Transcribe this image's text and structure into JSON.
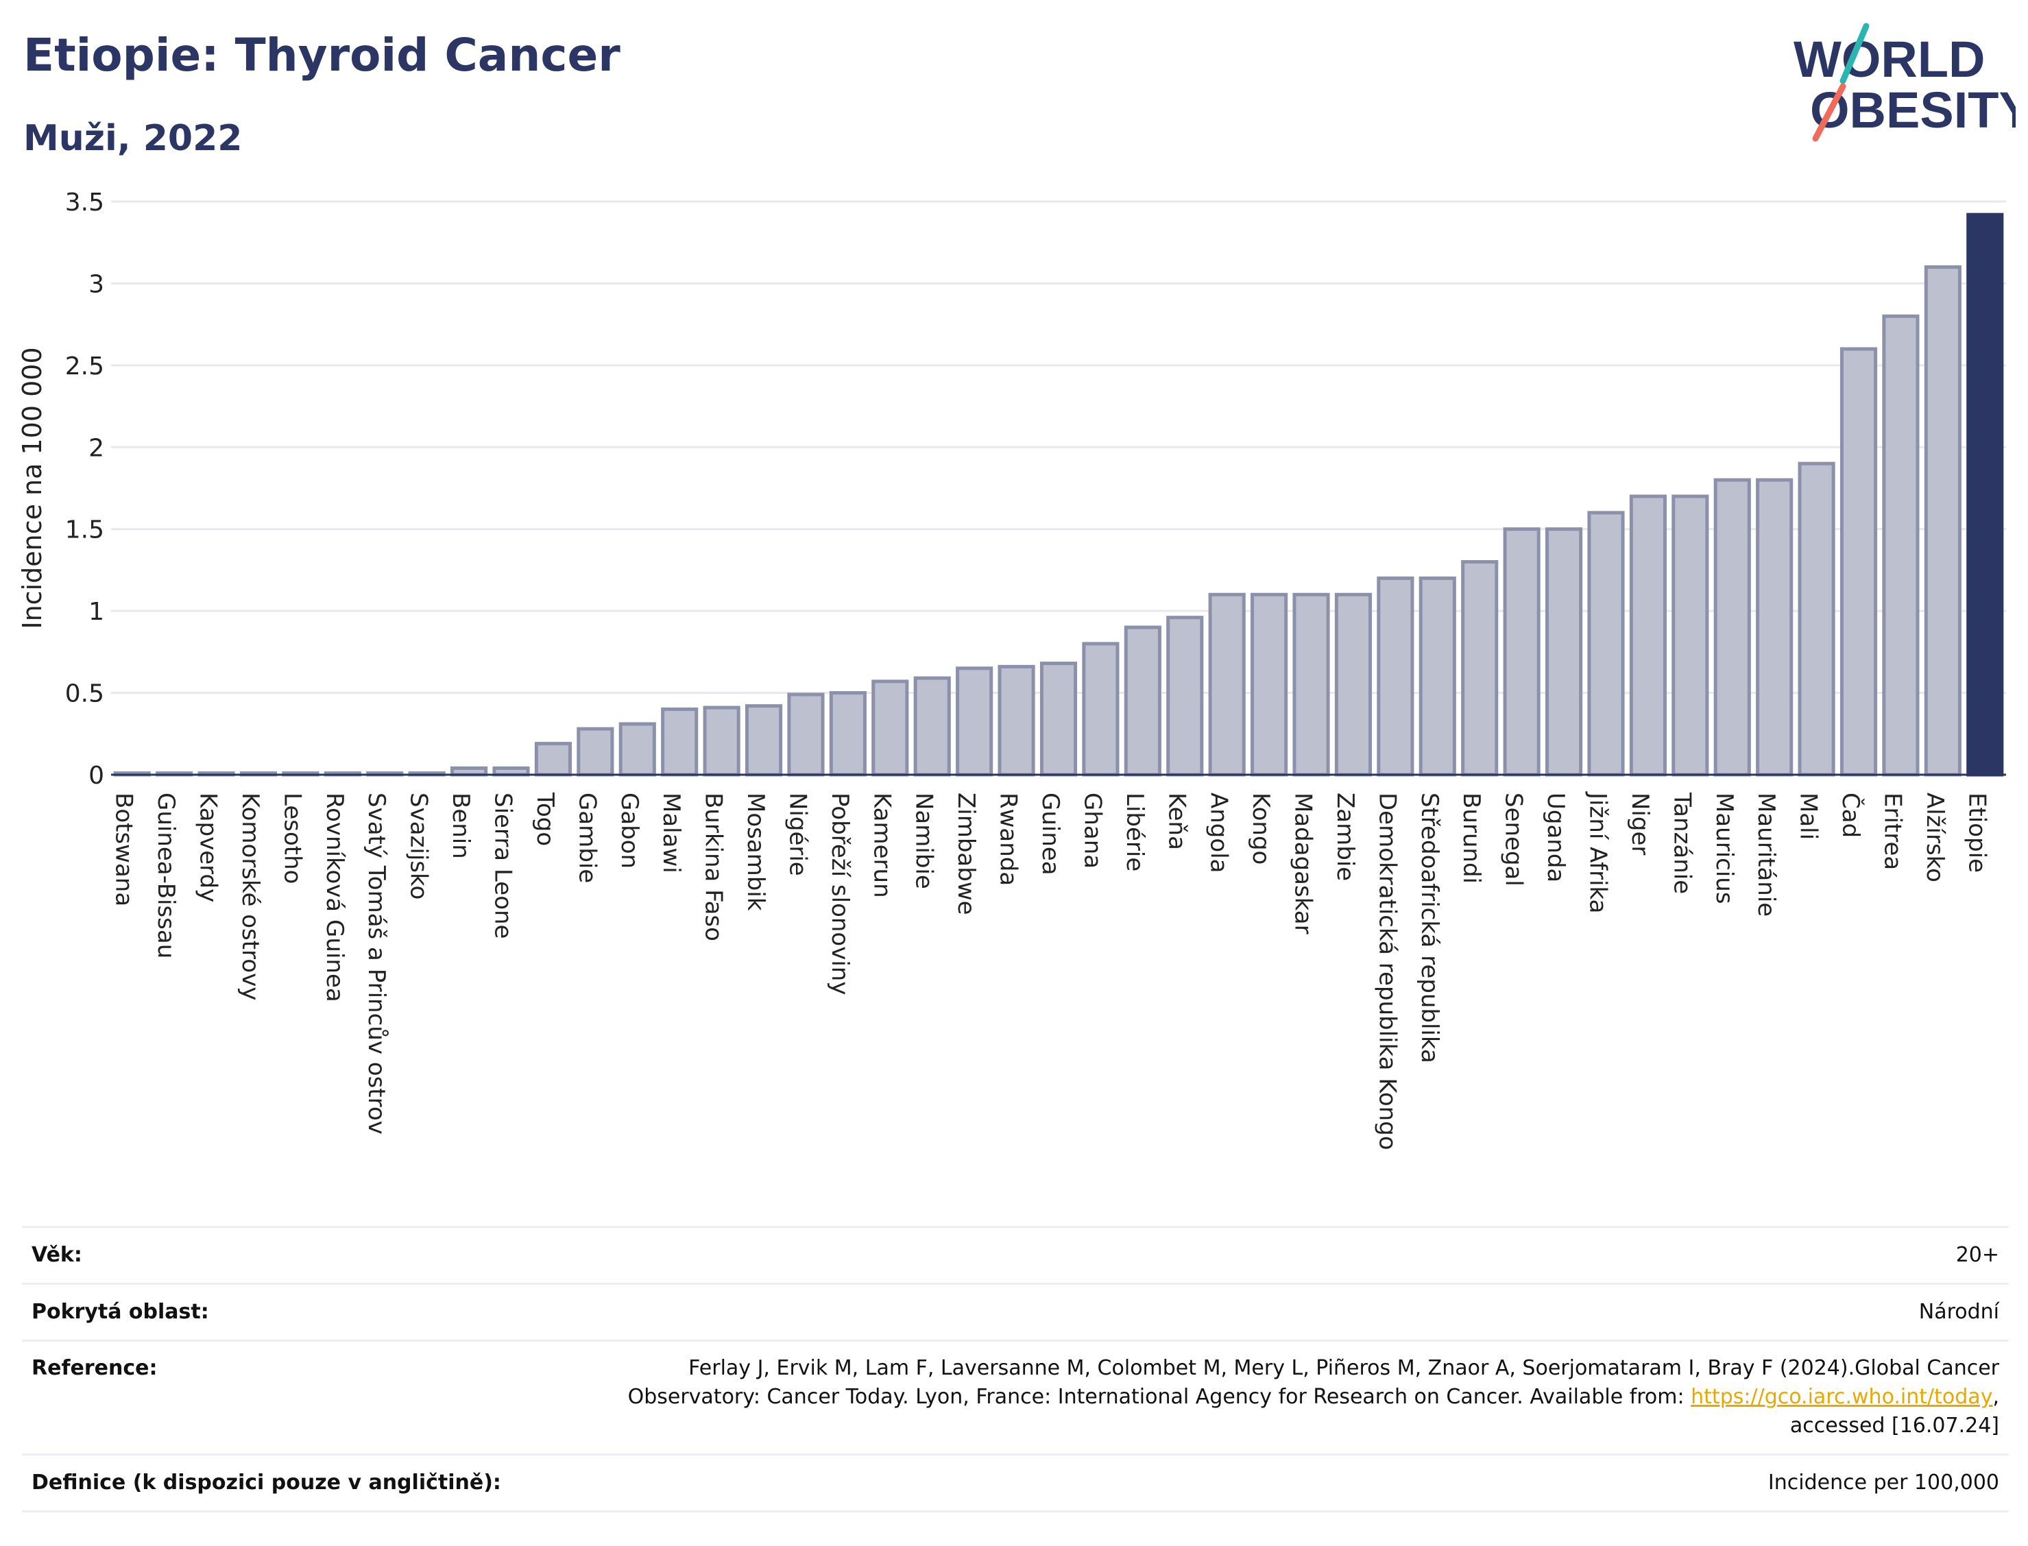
{
  "header": {
    "title": "Etiopie: Thyroid Cancer",
    "subtitle": "Muži, 2022"
  },
  "logo": {
    "line1": "WORLD",
    "line2": "OBESITY",
    "accent_colors": [
      "#2bb5b0",
      "#ef6b5b"
    ]
  },
  "colors": {
    "bar": "#bcc0cf",
    "bar_border": "#8b91ab",
    "highlight": "#2b3664",
    "grid": "#e6e8ee",
    "axis_text": "#222222"
  },
  "chart_data": {
    "type": "bar",
    "ylabel": "Incidence na 100 000",
    "xlabel": "",
    "ylim": [
      0,
      3.5
    ],
    "yticks": [
      "0",
      "0.5",
      "1",
      "1.5",
      "2",
      "2.5",
      "3",
      "3.5"
    ],
    "grid": true,
    "highlight": "Etiopie",
    "categories": [
      "Botswana",
      "Guinea-Bissau",
      "Kapverdy",
      "Komorské ostrovy",
      "Lesotho",
      "Rovníková Guinea",
      "Svatý Tomáš a Princův ostrov",
      "Svazijsko",
      "Benin",
      "Sierra Leone",
      "Togo",
      "Gambie",
      "Gabon",
      "Malawi",
      "Burkina Faso",
      "Mosambik",
      "Nigérie",
      "Pobřeží slonoviny",
      "Kamerun",
      "Namibie",
      "Zimbabwe",
      "Rwanda",
      "Guinea",
      "Ghana",
      "Libérie",
      "Keňa",
      "Angola",
      "Kongo",
      "Madagaskar",
      "Zambie",
      "Demokratická republika Kongo",
      "Středoafrická republika",
      "Burundi",
      "Senegal",
      "Uganda",
      "Jižní Afrika",
      "Niger",
      "Tanzánie",
      "Mauricius",
      "Mauritánie",
      "Mali",
      "Čad",
      "Eritrea",
      "Alžírsko",
      "Etiopie"
    ],
    "values": [
      0.01,
      0.01,
      0.01,
      0.01,
      0.01,
      0.01,
      0.01,
      0.01,
      0.04,
      0.04,
      0.19,
      0.28,
      0.31,
      0.4,
      0.41,
      0.42,
      0.49,
      0.5,
      0.57,
      0.59,
      0.65,
      0.66,
      0.68,
      0.8,
      0.9,
      0.96,
      1.1,
      1.1,
      1.1,
      1.1,
      1.2,
      1.2,
      1.3,
      1.5,
      1.5,
      1.6,
      1.7,
      1.7,
      1.8,
      1.8,
      1.9,
      2.6,
      2.8,
      3.1,
      3.42
    ]
  },
  "info": {
    "age": {
      "label": "Věk:",
      "value": "20+"
    },
    "coverage": {
      "label": "Pokrytá oblast:",
      "value": "Národní"
    },
    "reference": {
      "label": "Reference:",
      "line1": "Ferlay J, Ervik M, Lam F, Laversanne M, Colombet M, Mery L, Piñeros M, Znaor A, Soerjomataram I, Bray F (2024).Global Cancer",
      "line2_prefix": "Observatory: Cancer Today. Lyon, France: International Agency for Research on Cancer. Available from: ",
      "link": "https://gco.iarc.who.int/today",
      "line2_suffix": ",",
      "line3": "accessed [16.07.24]"
    },
    "definition": {
      "label": "Definice (k dispozici pouze v angličtině):",
      "value": "Incidence per 100,000"
    }
  }
}
